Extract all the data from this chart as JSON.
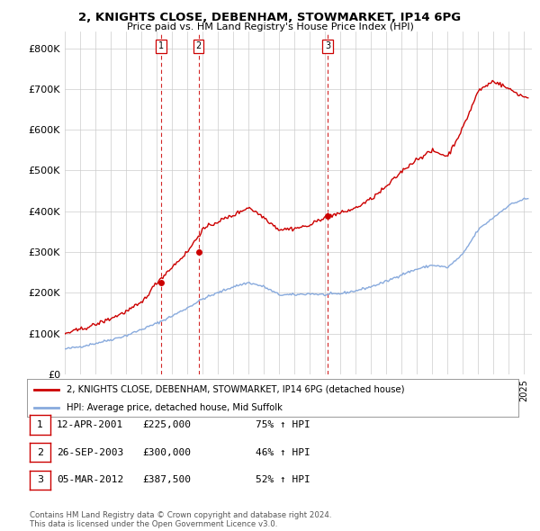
{
  "title": "2, KNIGHTS CLOSE, DEBENHAM, STOWMARKET, IP14 6PG",
  "subtitle": "Price paid vs. HM Land Registry's House Price Index (HPI)",
  "transactions": [
    {
      "label": "1",
      "date": "12-APR-2001",
      "price": 225000,
      "pct": "75%",
      "direction": "↑",
      "x_year": 2001.28
    },
    {
      "label": "2",
      "date": "26-SEP-2003",
      "price": 300000,
      "pct": "46%",
      "direction": "↑",
      "x_year": 2003.73
    },
    {
      "label": "3",
      "date": "05-MAR-2012",
      "price": 387500,
      "pct": "52%",
      "direction": "↑",
      "x_year": 2012.17
    }
  ],
  "legend_property": "2, KNIGHTS CLOSE, DEBENHAM, STOWMARKET, IP14 6PG (detached house)",
  "legend_hpi": "HPI: Average price, detached house, Mid Suffolk",
  "footer": "Contains HM Land Registry data © Crown copyright and database right 2024.\nThis data is licensed under the Open Government Licence v3.0.",
  "property_color": "#cc0000",
  "hpi_color": "#88aadd",
  "vline_color": "#cc0000",
  "background_color": "#ffffff",
  "ylim": [
    0,
    840000
  ],
  "yticks": [
    0,
    100000,
    200000,
    300000,
    400000,
    500000,
    600000,
    700000,
    800000
  ],
  "xlim": [
    1995.0,
    2025.5
  ],
  "hpi_anchor_years": [
    1995,
    1996,
    1997,
    1998,
    1999,
    2000,
    2001,
    2002,
    2003,
    2004,
    2005,
    2006,
    2007,
    2008,
    2009,
    2010,
    2011,
    2012,
    2013,
    2014,
    2015,
    2016,
    2017,
    2018,
    2019,
    2020,
    2021,
    2022,
    2023,
    2024,
    2025
  ],
  "hpi_anchor_vals": [
    62000,
    68000,
    76000,
    85000,
    95000,
    110000,
    125000,
    143000,
    163000,
    185000,
    200000,
    215000,
    225000,
    215000,
    195000,
    195000,
    198000,
    195000,
    198000,
    205000,
    215000,
    228000,
    245000,
    258000,
    268000,
    262000,
    295000,
    355000,
    385000,
    415000,
    430000
  ],
  "prop_anchor_years": [
    1995,
    1996,
    1997,
    1998,
    1999,
    2000,
    2001,
    2002,
    2003,
    2004,
    2005,
    2006,
    2007,
    2008,
    2009,
    2010,
    2011,
    2012,
    2013,
    2014,
    2015,
    2016,
    2017,
    2018,
    2019,
    2020,
    2021,
    2022,
    2023,
    2024,
    2025
  ],
  "prop_anchor_vals": [
    100000,
    110000,
    122000,
    137000,
    154000,
    175000,
    225000,
    263000,
    300000,
    355000,
    375000,
    390000,
    410000,
    385000,
    355000,
    358000,
    365000,
    387500,
    395000,
    408000,
    430000,
    460000,
    498000,
    528000,
    548000,
    535000,
    605000,
    695000,
    720000,
    700000,
    680000
  ]
}
